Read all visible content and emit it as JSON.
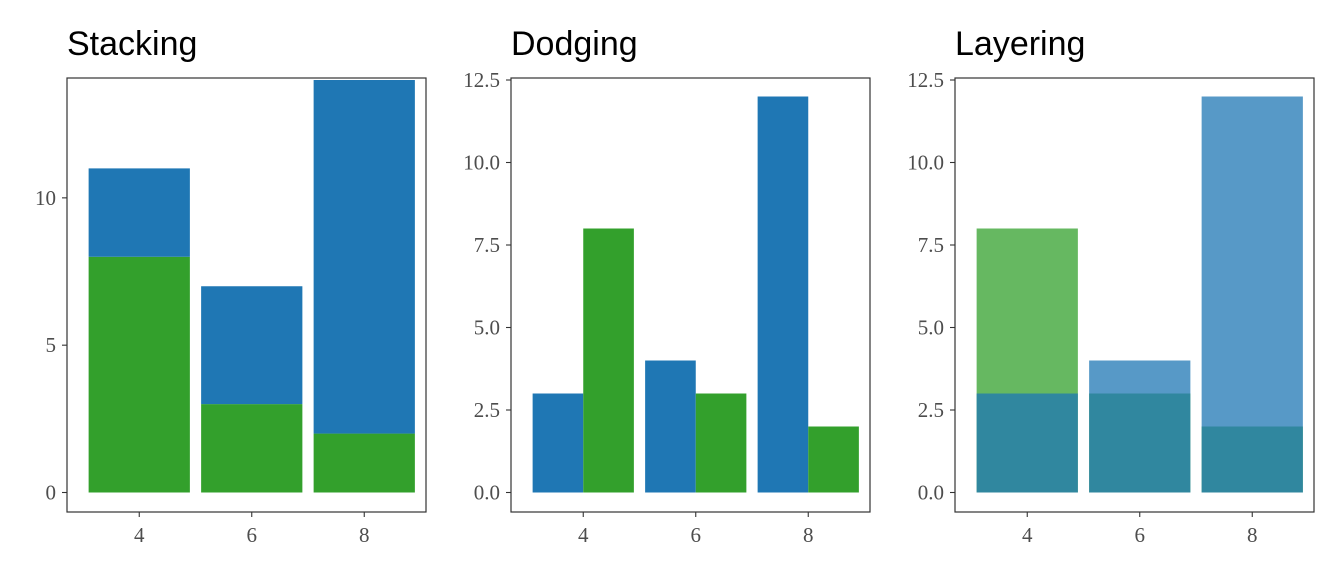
{
  "colors": {
    "blue": "#1f77b4",
    "green": "#33a02c"
  },
  "chart_data": [
    {
      "type": "bar",
      "mode": "stacked",
      "title": "Stacking",
      "categories": [
        "4",
        "6",
        "8"
      ],
      "series": [
        {
          "color": "#33a02c",
          "values": [
            8,
            3,
            2
          ]
        },
        {
          "color": "#1f77b4",
          "values": [
            3,
            4,
            12
          ]
        }
      ],
      "ylim": [
        0,
        14
      ],
      "yticks": [
        0,
        5,
        10
      ],
      "ytick_labels": [
        "0",
        "5",
        "10"
      ],
      "grid": false,
      "legend": "none"
    },
    {
      "type": "bar",
      "mode": "dodged",
      "title": "Dodging",
      "categories": [
        "4",
        "6",
        "8"
      ],
      "series": [
        {
          "color": "#1f77b4",
          "values": [
            3,
            4,
            12
          ]
        },
        {
          "color": "#33a02c",
          "values": [
            8,
            3,
            2
          ]
        }
      ],
      "ylim": [
        0,
        12.5
      ],
      "yticks": [
        0,
        2.5,
        5,
        7.5,
        10,
        12.5
      ],
      "ytick_labels": [
        "0.0",
        "2.5",
        "5.0",
        "7.5",
        "10.0",
        "12.5"
      ],
      "grid": false,
      "legend": "none"
    },
    {
      "type": "bar",
      "mode": "layered",
      "title": "Layering",
      "categories": [
        "4",
        "6",
        "8"
      ],
      "series": [
        {
          "color": "#33a02c",
          "values": [
            8,
            3,
            2
          ],
          "opacity": 0.75
        },
        {
          "color": "#1f77b4",
          "values": [
            3,
            4,
            12
          ],
          "opacity": 0.75
        }
      ],
      "ylim": [
        0,
        12.5
      ],
      "yticks": [
        0,
        2.5,
        5,
        7.5,
        10,
        12.5
      ],
      "ytick_labels": [
        "0.0",
        "2.5",
        "5.0",
        "7.5",
        "10.0",
        "12.5"
      ],
      "grid": false,
      "legend": "none"
    }
  ]
}
